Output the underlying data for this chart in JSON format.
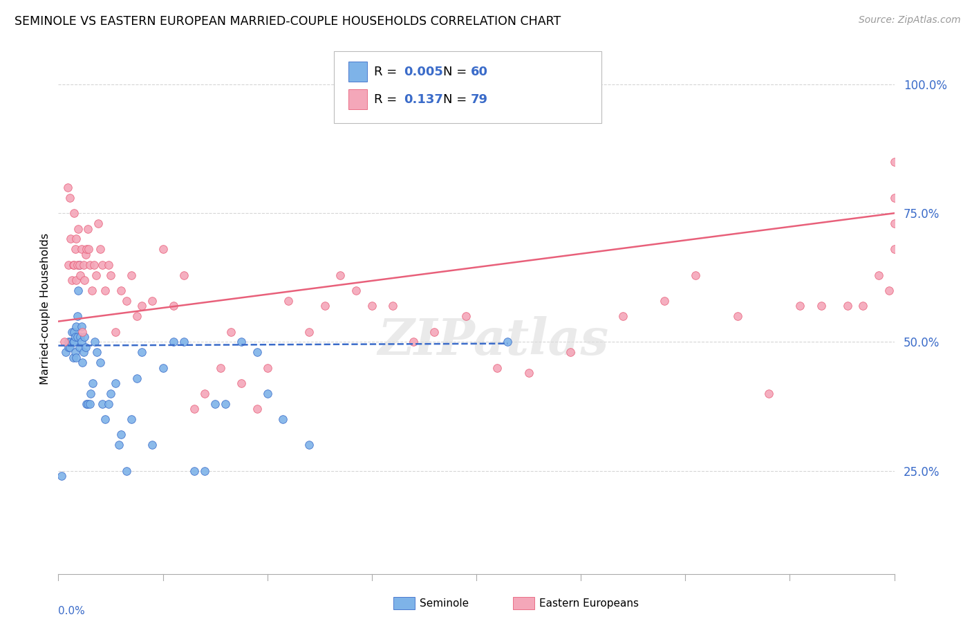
{
  "title": "SEMINOLE VS EASTERN EUROPEAN MARRIED-COUPLE HOUSEHOLDS CORRELATION CHART",
  "source": "Source: ZipAtlas.com",
  "ylabel": "Married-couple Households",
  "ytick_labels": [
    "25.0%",
    "50.0%",
    "75.0%",
    "100.0%"
  ],
  "ytick_values": [
    0.25,
    0.5,
    0.75,
    1.0
  ],
  "xmin": 0.0,
  "xmax": 0.8,
  "ymin": 0.05,
  "ymax": 1.08,
  "color_blue": "#7EB3E8",
  "color_pink": "#F4A7B9",
  "line_blue": "#3A6BC9",
  "line_pink": "#E8607A",
  "grid_color": "#CCCCCC",
  "seminole_x": [
    0.003,
    0.007,
    0.01,
    0.01,
    0.011,
    0.012,
    0.013,
    0.014,
    0.014,
    0.015,
    0.015,
    0.016,
    0.016,
    0.017,
    0.017,
    0.018,
    0.018,
    0.019,
    0.02,
    0.02,
    0.021,
    0.022,
    0.022,
    0.023,
    0.024,
    0.025,
    0.026,
    0.027,
    0.028,
    0.03,
    0.031,
    0.033,
    0.035,
    0.037,
    0.04,
    0.042,
    0.045,
    0.048,
    0.05,
    0.055,
    0.058,
    0.06,
    0.065,
    0.07,
    0.075,
    0.08,
    0.09,
    0.1,
    0.11,
    0.12,
    0.13,
    0.14,
    0.15,
    0.16,
    0.175,
    0.19,
    0.2,
    0.215,
    0.24,
    0.43
  ],
  "seminole_y": [
    0.24,
    0.48,
    0.49,
    0.5,
    0.49,
    0.5,
    0.52,
    0.5,
    0.47,
    0.5,
    0.52,
    0.48,
    0.51,
    0.53,
    0.47,
    0.51,
    0.55,
    0.6,
    0.65,
    0.49,
    0.51,
    0.53,
    0.5,
    0.46,
    0.48,
    0.51,
    0.49,
    0.38,
    0.38,
    0.38,
    0.4,
    0.42,
    0.5,
    0.48,
    0.46,
    0.38,
    0.35,
    0.38,
    0.4,
    0.42,
    0.3,
    0.32,
    0.25,
    0.35,
    0.43,
    0.48,
    0.3,
    0.45,
    0.5,
    0.5,
    0.25,
    0.25,
    0.38,
    0.38,
    0.5,
    0.48,
    0.4,
    0.35,
    0.3,
    0.5
  ],
  "eastern_x": [
    0.006,
    0.009,
    0.01,
    0.011,
    0.012,
    0.013,
    0.014,
    0.015,
    0.015,
    0.016,
    0.017,
    0.017,
    0.018,
    0.019,
    0.02,
    0.021,
    0.022,
    0.023,
    0.024,
    0.025,
    0.026,
    0.027,
    0.028,
    0.029,
    0.03,
    0.032,
    0.034,
    0.036,
    0.038,
    0.04,
    0.042,
    0.045,
    0.048,
    0.05,
    0.055,
    0.06,
    0.065,
    0.07,
    0.075,
    0.08,
    0.09,
    0.1,
    0.11,
    0.12,
    0.13,
    0.14,
    0.155,
    0.165,
    0.175,
    0.19,
    0.2,
    0.22,
    0.24,
    0.255,
    0.27,
    0.285,
    0.3,
    0.32,
    0.34,
    0.36,
    0.39,
    0.42,
    0.45,
    0.49,
    0.54,
    0.58,
    0.61,
    0.65,
    0.68,
    0.71,
    0.73,
    0.755,
    0.77,
    0.785,
    0.795,
    0.8,
    0.8,
    0.8,
    0.8
  ],
  "eastern_y": [
    0.5,
    0.8,
    0.65,
    0.78,
    0.7,
    0.62,
    0.65,
    0.75,
    0.65,
    0.68,
    0.7,
    0.62,
    0.65,
    0.72,
    0.65,
    0.63,
    0.68,
    0.52,
    0.65,
    0.62,
    0.67,
    0.68,
    0.72,
    0.68,
    0.65,
    0.6,
    0.65,
    0.63,
    0.73,
    0.68,
    0.65,
    0.6,
    0.65,
    0.63,
    0.52,
    0.6,
    0.58,
    0.63,
    0.55,
    0.57,
    0.58,
    0.68,
    0.57,
    0.63,
    0.37,
    0.4,
    0.45,
    0.52,
    0.42,
    0.37,
    0.45,
    0.58,
    0.52,
    0.57,
    0.63,
    0.6,
    0.57,
    0.57,
    0.5,
    0.52,
    0.55,
    0.45,
    0.44,
    0.48,
    0.55,
    0.58,
    0.63,
    0.55,
    0.4,
    0.57,
    0.57,
    0.57,
    0.57,
    0.63,
    0.6,
    0.68,
    0.73,
    0.78,
    0.85
  ],
  "sem_line_x": [
    0.0,
    0.43
  ],
  "sem_line_y": [
    0.493,
    0.497
  ],
  "east_line_x": [
    0.0,
    0.8
  ],
  "east_line_y_start": 0.54,
  "east_line_y_end": 0.75,
  "tick_label_color": "#3A6BC9",
  "title_fontsize": 12.5
}
